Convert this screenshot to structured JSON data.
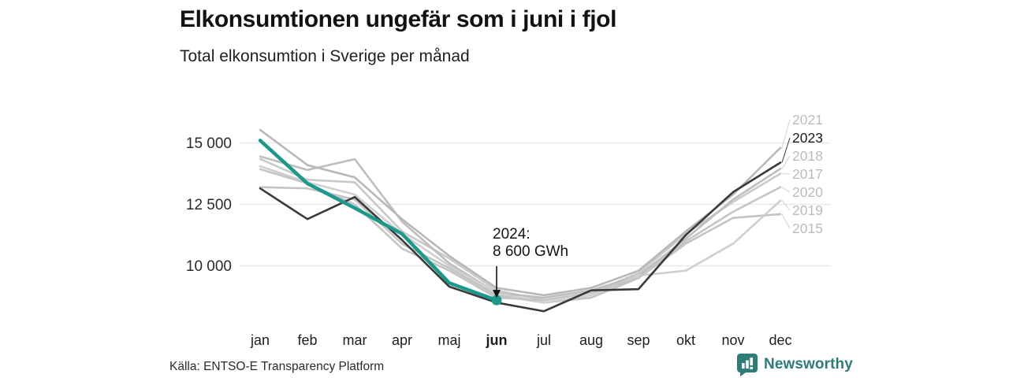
{
  "header": {
    "title": "Elkonsumtionen ungefär som i juni i fjol",
    "subtitle": "Total elkonsumtion i Sverige per månad"
  },
  "annotation": {
    "line1": "2024:",
    "line2": "8 600 GWh"
  },
  "footer": {
    "source": "Källa: ENTSO-E Transparency Platform",
    "brand": "Newsworthy"
  },
  "colors": {
    "accent_teal": "#1b998b",
    "dark_line": "#3a3a3a",
    "gray_line": "#c6c6c6",
    "gridline": "#e8e8ec",
    "gray_label": "#b9bcbe",
    "logo_teal": "#2c7d78"
  },
  "chart_data": {
    "type": "line",
    "title": "Total elkonsumtion i Sverige per månad",
    "unit": "GWh",
    "categories": [
      "jan",
      "feb",
      "mar",
      "apr",
      "maj",
      "jun",
      "jul",
      "aug",
      "sep",
      "okt",
      "nov",
      "dec"
    ],
    "bold_category": "jun",
    "yticks": [
      {
        "value": 15000,
        "label": "15 000"
      },
      {
        "value": 12500,
        "label": "12 500"
      },
      {
        "value": 10000,
        "label": "10 000"
      }
    ],
    "ylim": [
      7800,
      16300
    ],
    "grid": "horizontal",
    "legend_position": "right-edge-labels",
    "series": [
      {
        "name": "2015",
        "color": "#c3c3c3",
        "label_color": "#b9bcbe",
        "leader_color": "#d6d6d6",
        "labeled": true,
        "values": [
          13200,
          13150,
          12700,
          10900,
          9900,
          8800,
          8500,
          8700,
          9500,
          10900,
          11950,
          12100
        ]
      },
      {
        "name": "2017",
        "color": "#c9c9c9",
        "label_color": "#b9bcbe",
        "leader_color": "#d6d6d6",
        "labeled": true,
        "values": [
          14350,
          13500,
          13400,
          11400,
          10300,
          9000,
          8600,
          8900,
          9700,
          11300,
          12600,
          13750
        ]
      },
      {
        "name": "2018",
        "color": "#bebebe",
        "label_color": "#b9bcbe",
        "leader_color": "#d6d6d6",
        "labeled": true,
        "values": [
          14450,
          13900,
          14340,
          11800,
          10100,
          8900,
          8700,
          9000,
          9600,
          11100,
          12700,
          13950
        ]
      },
      {
        "name": "2019",
        "color": "#cfcfcf",
        "label_color": "#b9bcbe",
        "leader_color": "#d6d6d6",
        "labeled": true,
        "values": [
          14050,
          13400,
          12900,
          11300,
          10000,
          8900,
          8500,
          8800,
          9600,
          9800,
          10900,
          12650
        ]
      },
      {
        "name": "2020",
        "color": "#c5c5c5",
        "label_color": "#b9bcbe",
        "leader_color": "#d6d6d6",
        "labeled": true,
        "values": [
          13930,
          13350,
          12500,
          10700,
          9800,
          8700,
          8600,
          8900,
          9500,
          11000,
          12200,
          13200
        ]
      },
      {
        "name": "2021",
        "color": "#b8b8b8",
        "label_color": "#b9bcbe",
        "leader_color": "#d6d6d6",
        "labeled": true,
        "values": [
          15530,
          14100,
          13600,
          11900,
          10400,
          9100,
          8800,
          9100,
          9800,
          11400,
          12900,
          14800
        ]
      },
      {
        "name": "2023",
        "color": "#3a3a3a",
        "label_color": "#1a1a1a",
        "leader_color": "#4a4a4a",
        "labeled": true,
        "values": [
          13150,
          11900,
          12800,
          11050,
          9150,
          8500,
          8150,
          9000,
          9050,
          11250,
          13000,
          14200
        ]
      },
      {
        "name": "2024",
        "color": "#1b998b",
        "label_color": "#1b998b",
        "leader_color": "#1b998b",
        "labeled": false,
        "highlight": true,
        "values": [
          15100,
          13350,
          12350,
          11300,
          9300,
          8600
        ]
      }
    ],
    "annotation_point": {
      "series": "2024",
      "category": "jun",
      "value": 8600
    }
  }
}
